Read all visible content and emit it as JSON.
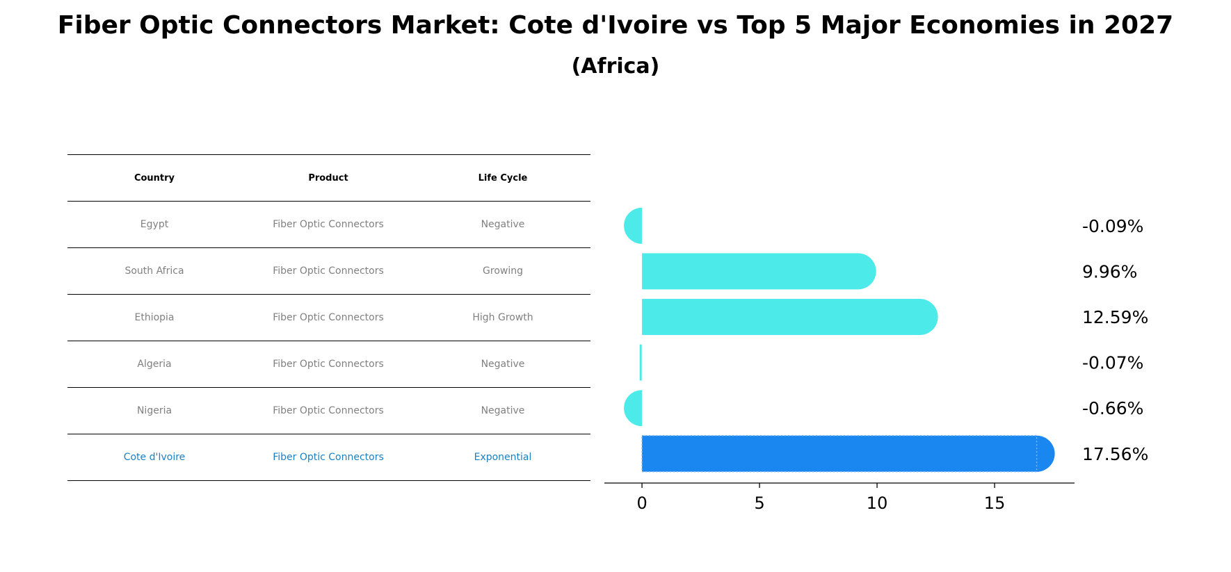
{
  "title": "Fiber Optic Connectors Market: Cote d'Ivoire vs Top 5 Major Economies in 2027",
  "subtitle": "(Africa)",
  "table": {
    "headers": [
      "Country",
      "Product",
      "Life Cycle"
    ],
    "rows": [
      [
        "Egypt",
        "Fiber Optic Connectors",
        "Negative"
      ],
      [
        "South Africa",
        "Fiber Optic Connectors",
        "Growing"
      ],
      [
        "Ethiopia",
        "Fiber Optic Connectors",
        "High Growth"
      ],
      [
        "Algeria",
        "Fiber Optic Connectors",
        "Negative"
      ],
      [
        "Nigeria",
        "Fiber Optic Connectors",
        "Negative"
      ],
      [
        "Cote d'Ivoire",
        "Fiber Optic Connectors",
        "Exponential"
      ]
    ]
  },
  "chart_data": {
    "type": "bar",
    "orientation": "horizontal",
    "categories": [
      "Egypt",
      "South Africa",
      "Ethiopia",
      "Algeria",
      "Nigeria",
      "Cote d'Ivoire"
    ],
    "values": [
      -0.09,
      9.96,
      12.59,
      -0.07,
      -0.66,
      17.56
    ],
    "value_labels": [
      "-0.09%",
      "9.96%",
      "12.59%",
      "-0.07%",
      "-0.66%",
      "17.56%"
    ],
    "highlight": "Cote d'Ivoire",
    "xlim": [
      -1.6,
      18.4
    ],
    "xticks": [
      0,
      5,
      10,
      15
    ],
    "colors": {
      "default": "#4deaea",
      "highlight": "#1a86f0"
    }
  }
}
